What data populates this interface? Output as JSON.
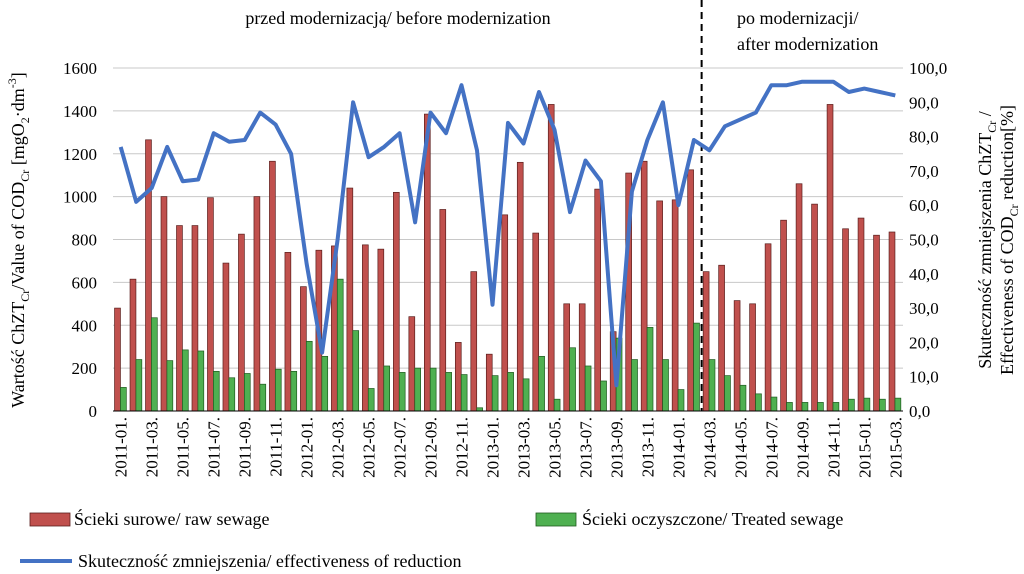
{
  "chart_data": {
    "type": "bar+line",
    "categories": [
      "2011-01.",
      "2011-02.",
      "2011-03.",
      "2011-04.",
      "2011-05.",
      "2011-06.",
      "2011-07.",
      "2011-08.",
      "2011-09.",
      "2011-10.",
      "2011-11.",
      "2011-12.",
      "2012-01.",
      "2012-02.",
      "2012-03.",
      "2012-04.",
      "2012-05.",
      "2012-06.",
      "2012-07.",
      "2012-08.",
      "2012-09.",
      "2012-10.",
      "2012-11.",
      "2012-12.",
      "2013-01.",
      "2013-02.",
      "2013-03.",
      "2013-04.",
      "2013-05.",
      "2013-06.",
      "2013-07.",
      "2013-08.",
      "2013-09.",
      "2013-10.",
      "2013-11.",
      "2013-12.",
      "2014-01.",
      "2014-02.",
      "2014-03.",
      "2014-04.",
      "2014-05.",
      "2014-06.",
      "2014-07.",
      "2014-08.",
      "2014-09.",
      "2014-10.",
      "2014-11.",
      "2014-12.",
      "2015-01.",
      "2015-02.",
      "2015-03."
    ],
    "tick_labels": [
      "2011-01.",
      "2011-03.",
      "2011-05.",
      "2011-07.",
      "2011-09.",
      "2011-11.",
      "2012-01.",
      "2012-03.",
      "2012-05.",
      "2012-07.",
      "2012-09.",
      "2012-11.",
      "2013-01.",
      "2013-03.",
      "2013-05.",
      "2013-07.",
      "2013-09.",
      "2013-11.",
      "2014-01.",
      "2014-03.",
      "2014-05.",
      "2014-07.",
      "2014-09.",
      "2014-11.",
      "2015-01.",
      "2015-03."
    ],
    "series": [
      {
        "name": "Ścieki surowe/ raw sewage",
        "type": "bar",
        "axis": "left",
        "color": "#c0504d",
        "values": [
          480,
          615,
          1265,
          1000,
          865,
          865,
          995,
          690,
          825,
          1000,
          1165,
          740,
          580,
          750,
          770,
          1040,
          775,
          755,
          1020,
          440,
          1385,
          940,
          320,
          650,
          265,
          915,
          1160,
          830,
          1430,
          500,
          500,
          1035,
          370,
          1110,
          1165,
          980,
          985,
          1125,
          650,
          680,
          515,
          500,
          780,
          890,
          1060,
          965,
          1430,
          850,
          900,
          820,
          835
        ]
      },
      {
        "name": "Ścieki oczyszczone/ Treated sewage",
        "type": "bar",
        "axis": "left",
        "color": "#4fb051",
        "values": [
          110,
          240,
          435,
          235,
          285,
          280,
          185,
          155,
          175,
          125,
          195,
          185,
          325,
          255,
          615,
          375,
          105,
          210,
          180,
          200,
          200,
          180,
          170,
          15,
          165,
          180,
          150,
          255,
          55,
          295,
          210,
          140,
          340,
          240,
          390,
          240,
          100,
          410,
          240,
          165,
          120,
          80,
          65,
          40,
          40,
          40,
          40,
          55,
          60,
          55,
          60
        ]
      },
      {
        "name": "Skuteczność zmniejszenia/ effectiveness of reduction",
        "type": "line",
        "axis": "right",
        "color": "#4472c4",
        "values": [
          77,
          61,
          65,
          77,
          67,
          67.5,
          81,
          78.5,
          79,
          87,
          83.5,
          75,
          43,
          17,
          50,
          90,
          74,
          77,
          81,
          55,
          87,
          81,
          95,
          76,
          31,
          84,
          78,
          93,
          82,
          58,
          73,
          67,
          7.5,
          64,
          79,
          90,
          60,
          79,
          76,
          83,
          85,
          87,
          95,
          95,
          96,
          96,
          96,
          93,
          94,
          93,
          92
        ]
      }
    ],
    "left_axis": {
      "label": "Wartość ChZTCr/Value of CODCr [mgO2·dm-3]",
      "ylim": [
        0,
        1600
      ],
      "ticks": [
        "0",
        "200",
        "400",
        "600",
        "800",
        "1000",
        "1200",
        "1400",
        "1600"
      ]
    },
    "right_axis": {
      "label": "Skuteczność zmniejszenia ChZTCr / Effectiveness of CODCr reduction[%]",
      "ylim": [
        0,
        100
      ],
      "ticks": [
        "0,0",
        "10,0",
        "20,0",
        "30,0",
        "40,0",
        "50,0",
        "60,0",
        "70,0",
        "80,0",
        "90,0",
        "100,0"
      ]
    },
    "annotations": {
      "before": "przed modernizacją/ before modernization",
      "after_line1": "po modernizacji/",
      "after_line2": "after modernization"
    },
    "divider_after_category": "2014-02.",
    "legend": {
      "placement": "bottom"
    }
  }
}
